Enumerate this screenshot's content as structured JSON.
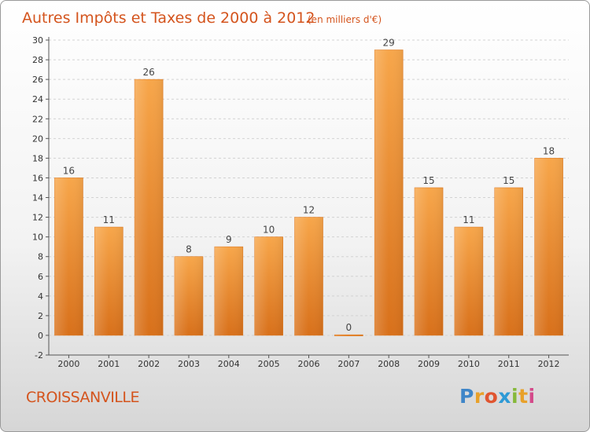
{
  "chart_data": {
    "type": "bar",
    "title": "Autres Impôts et Taxes de 2000 à 2012",
    "subtitle": "(en milliers d'€)",
    "categories": [
      "2000",
      "2001",
      "2002",
      "2003",
      "2004",
      "2005",
      "2006",
      "2007",
      "2008",
      "2009",
      "2010",
      "2011",
      "2012"
    ],
    "values": [
      16,
      11,
      26,
      8,
      9,
      10,
      12,
      0,
      29,
      15,
      11,
      15,
      18
    ],
    "ylim": [
      -2,
      30
    ],
    "yticks": [
      -2,
      0,
      2,
      4,
      6,
      8,
      10,
      12,
      14,
      16,
      18,
      20,
      22,
      24,
      26,
      28,
      30
    ],
    "grid": true,
    "bar_color": "#f08a2a"
  },
  "footer": {
    "commune": "CROISSANVILLE",
    "logo_letters": [
      "P",
      "r",
      "o",
      "x",
      "i",
      "t",
      "i"
    ],
    "logo_colors": [
      "#3f86c8",
      "#e8a12a",
      "#e05530",
      "#2d9ad6",
      "#86b93a",
      "#e8a12a",
      "#d44a8a"
    ]
  }
}
